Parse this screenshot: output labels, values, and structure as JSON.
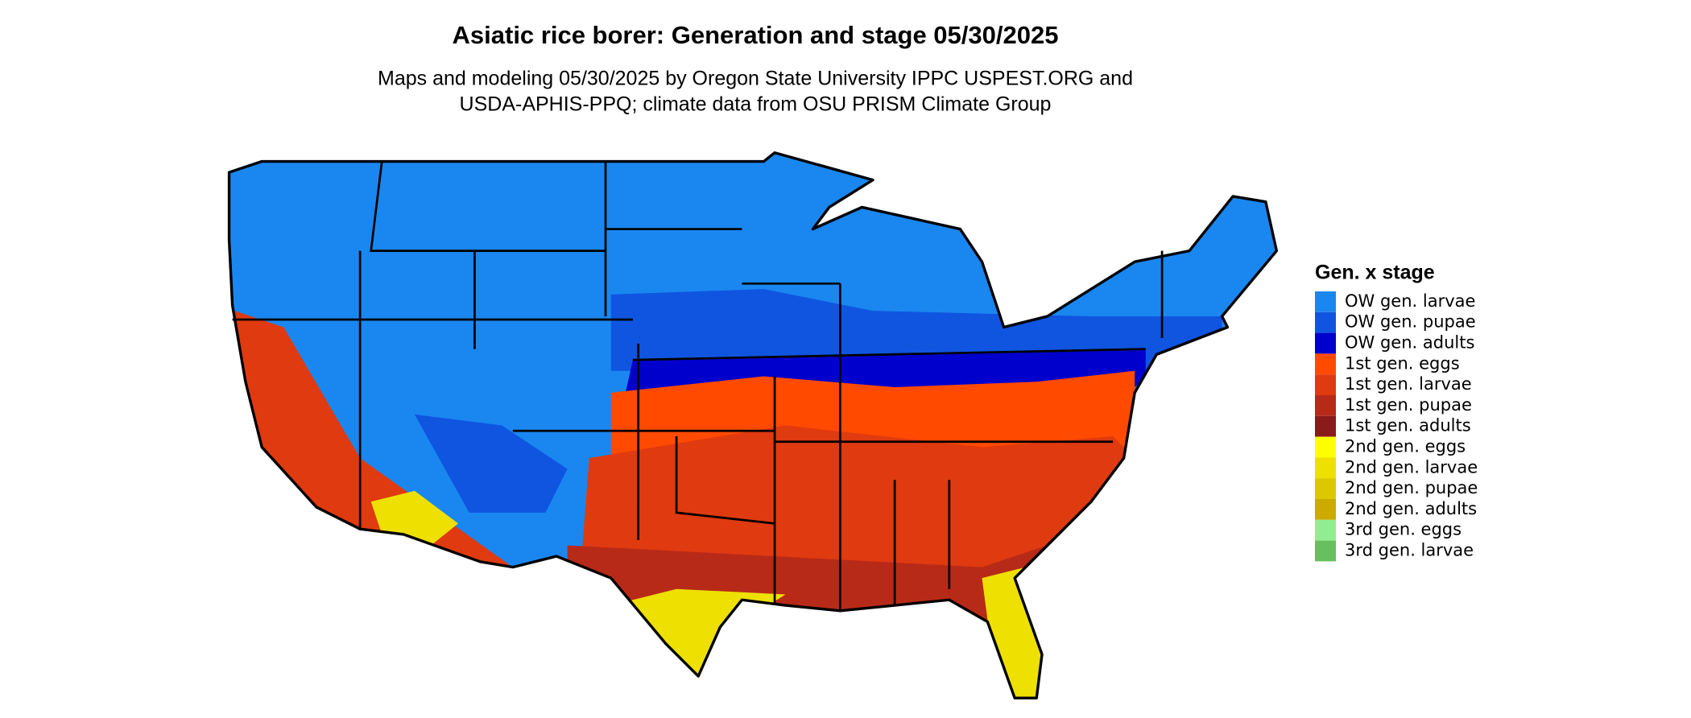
{
  "title": "Asiatic rice borer: Generation and stage 05/30/2025",
  "subtitle": [
    "Maps and modeling 05/30/2025 by Oregon State University IPPC USPEST.ORG and",
    "USDA-APHIS-PPQ; climate data from OSU PRISM Climate Group"
  ],
  "legend": {
    "title": "Gen. x stage",
    "items": [
      {
        "name": "OW gen. larvae",
        "color": "#1a87f0"
      },
      {
        "name": "OW gen. pupae",
        "color": "#0f55e0"
      },
      {
        "name": "OW gen. adults",
        "color": "#0000cc"
      },
      {
        "name": "1st gen. eggs",
        "color": "#ff4a00"
      },
      {
        "name": "1st gen. larvae",
        "color": "#e03a10"
      },
      {
        "name": "1st gen. pupae",
        "color": "#b82a18"
      },
      {
        "name": "1st gen. adults",
        "color": "#8b1a1a"
      },
      {
        "name": "2nd gen. eggs",
        "color": "#ffff00"
      },
      {
        "name": "2nd gen. larvae",
        "color": "#eee000"
      },
      {
        "name": "2nd gen. pupae",
        "color": "#ddc800"
      },
      {
        "name": "2nd gen. adults",
        "color": "#ccaa00"
      },
      {
        "name": "3rd gen. eggs",
        "color": "#90ee90"
      },
      {
        "name": "3rd gen. larvae",
        "color": "#66c060"
      }
    ]
  }
}
